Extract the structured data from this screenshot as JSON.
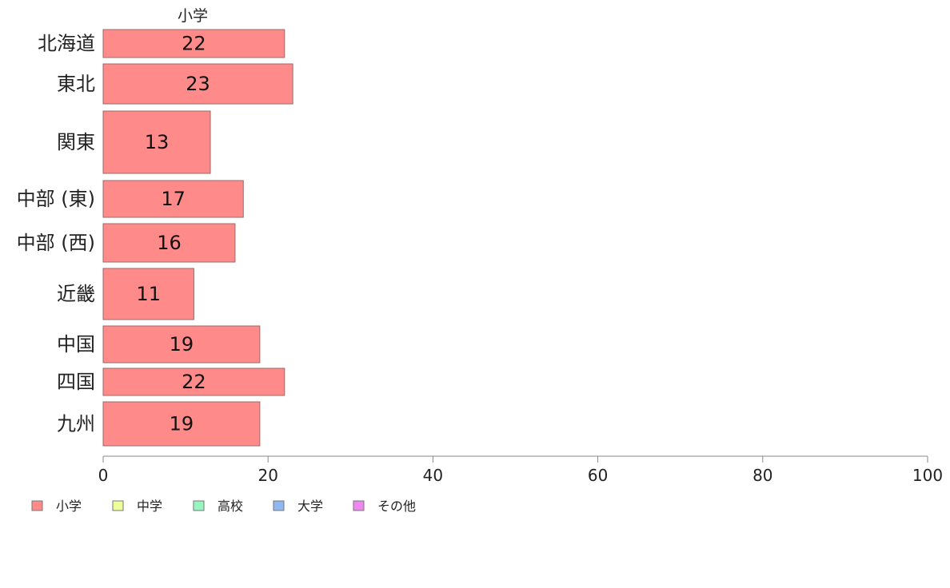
{
  "chart_data": {
    "type": "bar",
    "orientation": "horizontal",
    "series_header": "小学",
    "categories": [
      "北海道",
      "東北",
      "関東",
      "中部 (東)",
      "中部 (西)",
      "近畿",
      "中国",
      "四国",
      "九州"
    ],
    "series": [
      {
        "name": "小学",
        "color": "#ff8a8a",
        "values": [
          22,
          23,
          13,
          17,
          16,
          11,
          19,
          22,
          19
        ]
      }
    ],
    "bar_labels": [
      "22",
      "23",
      "13",
      "17",
      "16",
      "11",
      "19",
      "22",
      "19"
    ],
    "xlim": [
      0,
      100
    ],
    "xticks": [
      0,
      20,
      40,
      60,
      80,
      100
    ],
    "legend_position": "bottom-left",
    "legend": [
      {
        "label": "小学",
        "color": "#ff8a8a"
      },
      {
        "label": "中学",
        "color": "#eeff99"
      },
      {
        "label": "高校",
        "color": "#99f5c0"
      },
      {
        "label": "大学",
        "color": "#8fb8f0"
      },
      {
        "label": "その他",
        "color": "#ee88ee"
      }
    ],
    "grid": false
  }
}
